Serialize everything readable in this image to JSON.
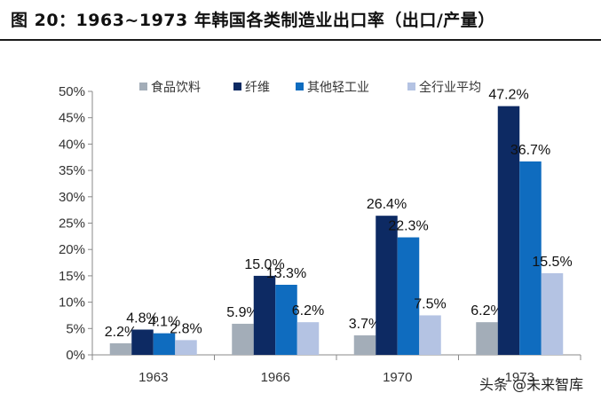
{
  "title": "图 20：1963~1973 年韩国各类制造业出口率（出口/产量）",
  "watermark": "头条 @未来智库",
  "chart_data": {
    "type": "bar",
    "categories": [
      "1963",
      "1966",
      "1970",
      "1973"
    ],
    "series": [
      {
        "name": "食品饮料",
        "values": [
          2.2,
          5.9,
          3.7,
          6.2
        ],
        "color": "#a3adb8"
      },
      {
        "name": "纤维",
        "values": [
          4.8,
          15.0,
          26.4,
          47.2
        ],
        "color": "#0d2a63"
      },
      {
        "name": "其他轻工业",
        "values": [
          4.1,
          13.3,
          22.3,
          36.7
        ],
        "color": "#0f6cbf"
      },
      {
        "name": "全行业平均",
        "values": [
          2.8,
          6.2,
          7.5,
          15.5
        ],
        "color": "#b4c3e3"
      }
    ],
    "data_labels": [
      [
        "2.2%",
        "5.9%",
        "3.7%",
        "6.2%"
      ],
      [
        "4.8%",
        "15.0%",
        "26.4%",
        "47.2%"
      ],
      [
        "4.1%",
        "13.3%",
        "22.3%",
        "36.7%"
      ],
      [
        "2.8%",
        "6.2%",
        "7.5%",
        "15.5%"
      ]
    ],
    "ylim": [
      0,
      50
    ],
    "yticks": [
      0,
      5,
      10,
      15,
      20,
      25,
      30,
      35,
      40,
      45,
      50
    ],
    "ytick_labels": [
      "0%",
      "5%",
      "10%",
      "15%",
      "20%",
      "25%",
      "30%",
      "35%",
      "40%",
      "45%",
      "50%"
    ],
    "legend_position": "top",
    "grid": false
  }
}
